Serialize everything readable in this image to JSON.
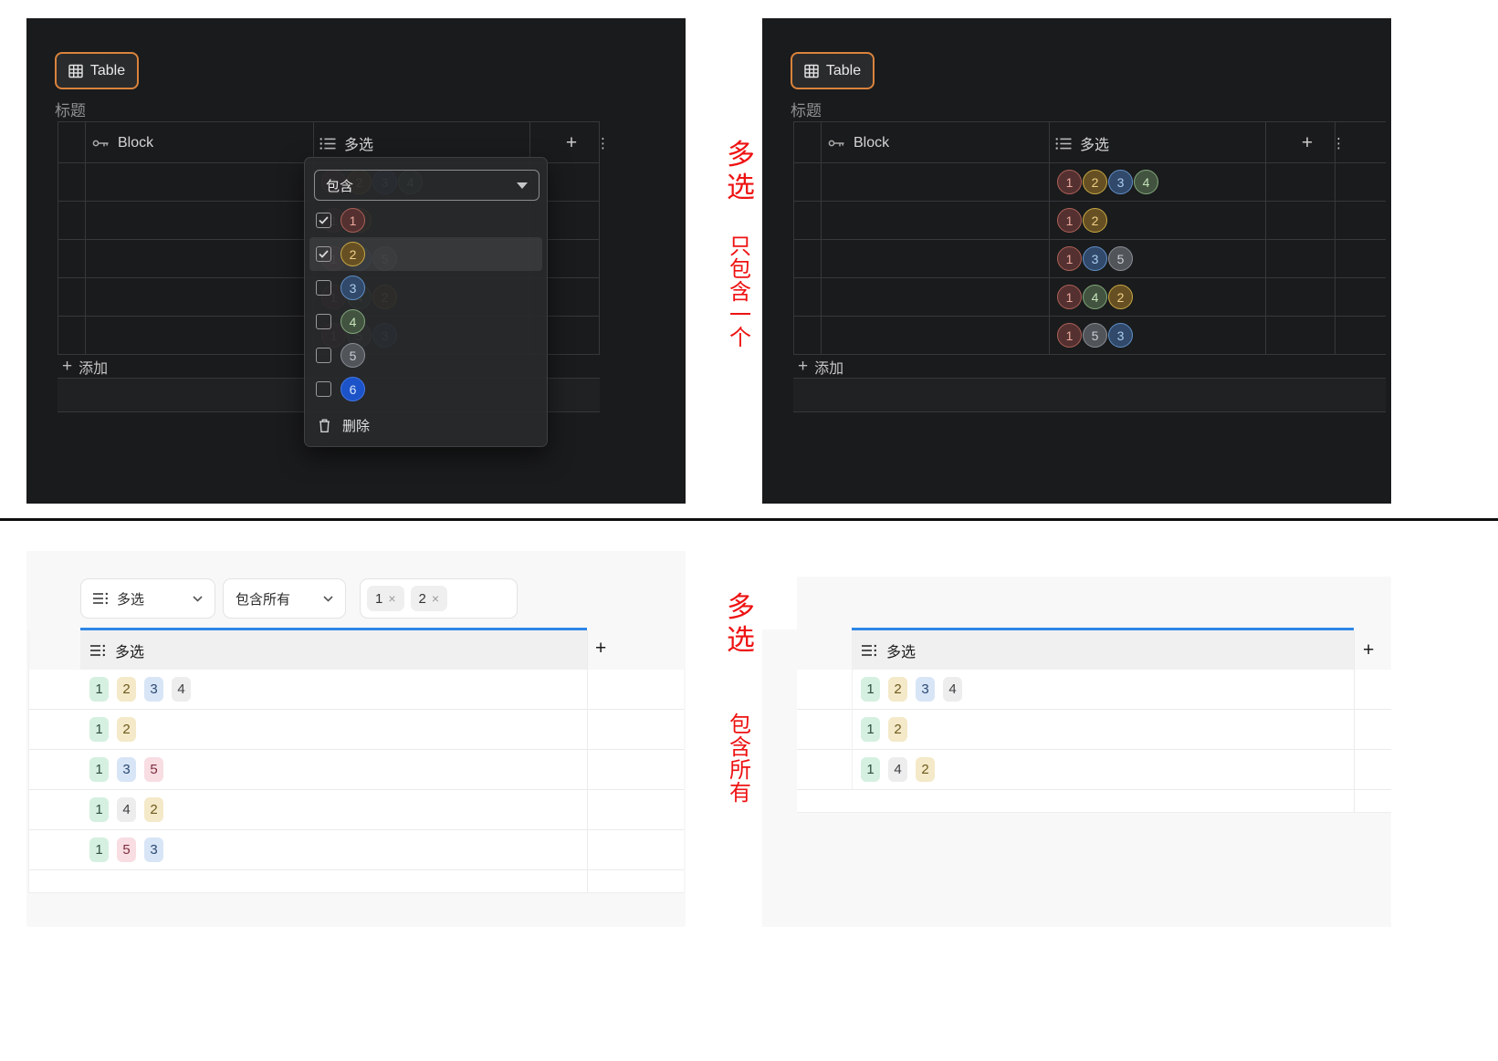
{
  "icons": {
    "plus": "+",
    "kebab": "⋮",
    "close": "×"
  },
  "panels": {
    "top_left": {
      "table_button": "Table",
      "section_title": "标题",
      "columns": {
        "block": "Block",
        "multi": "多选"
      },
      "add_label": "添加",
      "dropdown": {
        "operator": "包含",
        "options": [
          {
            "id": "1",
            "checked": true,
            "highlighted": false
          },
          {
            "id": "2",
            "checked": true,
            "highlighted": true
          },
          {
            "id": "3",
            "checked": false,
            "highlighted": false
          },
          {
            "id": "4",
            "checked": false,
            "highlighted": false
          },
          {
            "id": "5",
            "checked": false,
            "highlighted": false
          },
          {
            "id": "6",
            "checked": false,
            "highlighted": false
          }
        ],
        "delete_label": "删除"
      }
    },
    "top_right": {
      "table_button": "Table",
      "section_title": "标题",
      "columns": {
        "block": "Block",
        "multi": "多选"
      },
      "add_label": "添加"
    },
    "bottom_left": {
      "filter": {
        "field": "多选",
        "operator": "包含所有",
        "chips": [
          "1",
          "2"
        ]
      },
      "column": "多选"
    },
    "bottom_right": {
      "column": "多选"
    }
  },
  "rows_full": [
    [
      "1",
      "2",
      "3",
      "4"
    ],
    [
      "1",
      "2"
    ],
    [
      "1",
      "3",
      "5"
    ],
    [
      "1",
      "4",
      "2"
    ],
    [
      "1",
      "5",
      "3"
    ]
  ],
  "rows_filtered": [
    [
      "1",
      "2",
      "3",
      "4"
    ],
    [
      "1",
      "2"
    ],
    [
      "1",
      "4",
      "2"
    ]
  ],
  "option_colors": {
    "dark": {
      "1": {
        "bg": "#543130",
        "bd": "#ad6158",
        "tx": "#eba89c"
      },
      "2": {
        "bg": "#665023",
        "bd": "#c9a944",
        "tx": "#f2cf87"
      },
      "3": {
        "bg": "#31496a",
        "bd": "#6090c8",
        "tx": "#abcdf0"
      },
      "4": {
        "bg": "#425440",
        "bd": "#83a87c",
        "tx": "#c5e2b8"
      },
      "5": {
        "bg": "#515459",
        "bd": "#8b8f96",
        "tx": "#caced5"
      },
      "6": {
        "bg": "#1c53c8",
        "bd": "#4378e8",
        "tx": "#d3e2fb"
      }
    },
    "light": {
      "1": {
        "bg": "#d5f0e0",
        "tx": "#2f4f42"
      },
      "2": {
        "bg": "#f4e9c8",
        "tx": "#6d5a1d"
      },
      "3": {
        "bg": "#d8e5f6",
        "tx": "#2d4a73"
      },
      "4": {
        "bg": "#ededee",
        "tx": "#3f3f41"
      },
      "5": {
        "bg": "#f8dde3",
        "tx": "#7e2d3c"
      }
    }
  },
  "annotations": {
    "left_title": "多选",
    "left_note": "只包含一个",
    "right_title": "多选",
    "right_note": "包含所有"
  }
}
